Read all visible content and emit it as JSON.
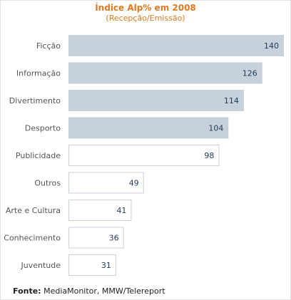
{
  "chart_data": {
    "type": "bar",
    "orientation": "horizontal",
    "title": "Índice Alp% em 2008",
    "subtitle": "(Recepção/Emissão)",
    "categories": [
      "Ficção",
      "Informação",
      "Divertimento",
      "Desporto",
      "Publicidade",
      "Outros",
      "Arte e Cultura",
      "Conhecimento",
      "Juventude"
    ],
    "values": [
      140,
      126,
      114,
      104,
      98,
      49,
      41,
      36,
      31
    ],
    "filled": [
      true,
      true,
      true,
      true,
      false,
      false,
      false,
      false,
      false
    ],
    "colors": {
      "filled": "#c6d1db",
      "outline": "#c6d1db",
      "empty_fill": "#ffffff",
      "title": "#e07a1f",
      "value_text": "#1f3b5a"
    }
  },
  "source": {
    "label": "Fonte:",
    "text": "MediaMonitor, MMW/Telereport"
  }
}
